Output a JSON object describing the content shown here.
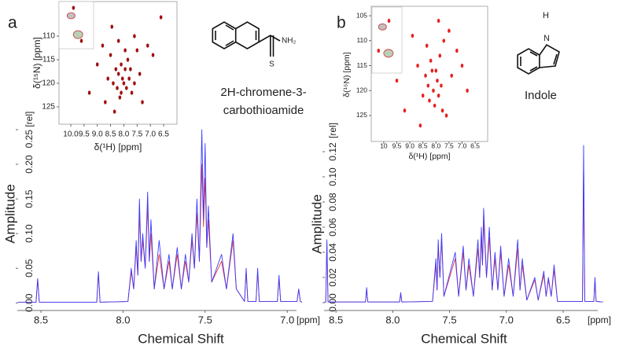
{
  "panel_labels": [
    "a",
    "b"
  ],
  "molecules": [
    {
      "atoms": [
        "NH₂",
        "S"
      ],
      "name_lines": [
        "2H-chromene-3-",
        "carbothioamide"
      ]
    },
    {
      "atoms": [
        "H",
        "N"
      ],
      "name_lines": [
        "Indole"
      ]
    }
  ],
  "chart_data": [
    {
      "type": "line",
      "x_label": "Chemical Shift",
      "y_label": "Amplitude",
      "x_unit": "[ppm]",
      "xlim": [
        8.644,
        6.905
      ],
      "ylim": [
        -0.011,
        0.267
      ],
      "xticks": [
        8.5,
        {
          "value": 8,
          "label": "8.0"
        },
        7.5,
        {
          "value": 7,
          "label": "7.0"
        }
      ],
      "yticks": [
        {
          "value": 0,
          "label": "0.00"
        },
        0.05,
        {
          "value": 0.1,
          "label": "0.10"
        },
        0.15,
        {
          "value": 0.2,
          "label": "0.20"
        },
        {
          "value": 0.25,
          "label": "0.25 [rel]"
        }
      ],
      "x": [
        8.64,
        8.53,
        8.52,
        8.51,
        8.16,
        8.15,
        8.14,
        7.97,
        7.95,
        7.935,
        7.92,
        7.91,
        7.9,
        7.89,
        7.88,
        7.865,
        7.85,
        7.84,
        7.83,
        7.81,
        7.78,
        7.75,
        7.72,
        7.7,
        7.67,
        7.645,
        7.62,
        7.6,
        7.58,
        7.565,
        7.55,
        7.535,
        7.52,
        7.51,
        7.5,
        7.49,
        7.48,
        7.46,
        7.4,
        7.37,
        7.33,
        7.31,
        7.26,
        7.25,
        7.24,
        7.19,
        7.18,
        7.17,
        7.06,
        7.05,
        7.04,
        6.94,
        6.93,
        6.92,
        6.91
      ],
      "series": [
        {
          "color": "#e8383b",
          "values": [
            0.001,
            0.001,
            0.034,
            0.001,
            0.001,
            0.043,
            0.001,
            0.002,
            0.045,
            0.02,
            0.08,
            0.04,
            0.13,
            0.06,
            0.09,
            0.05,
            0.14,
            0.06,
            0.1,
            0.02,
            0.07,
            0.02,
            0.06,
            0.02,
            0.07,
            0.02,
            0.06,
            0.03,
            0.09,
            0.05,
            0.13,
            0.06,
            0.2,
            0.11,
            0.18,
            0.08,
            0.12,
            0.03,
            0.06,
            0.02,
            0.09,
            0.02,
            0.002,
            0.045,
            0.002,
            0.002,
            0.045,
            0.002,
            0.002,
            0.035,
            0.002,
            0.002,
            0.02,
            0.002,
            0.001
          ]
        },
        {
          "color": "#3b3bff",
          "values": [
            0.001,
            0.001,
            0.035,
            0.001,
            0.001,
            0.045,
            0.001,
            0.002,
            0.05,
            0.02,
            0.09,
            0.04,
            0.15,
            0.06,
            0.1,
            0.05,
            0.16,
            0.06,
            0.12,
            0.02,
            0.09,
            0.02,
            0.07,
            0.02,
            0.08,
            0.02,
            0.07,
            0.03,
            0.1,
            0.05,
            0.15,
            0.06,
            0.25,
            0.12,
            0.23,
            0.08,
            0.14,
            0.03,
            0.07,
            0.02,
            0.1,
            0.02,
            0.002,
            0.05,
            0.002,
            0.002,
            0.05,
            0.002,
            0.002,
            0.04,
            0.002,
            0.002,
            0.02,
            0.002,
            0.001
          ]
        }
      ]
    },
    {
      "type": "scatter",
      "x_label": "δ(¹H) [ppm]",
      "y_label": "δ(¹⁵N) [ppm]",
      "xlim": [
        10.445,
        5.996
      ],
      "ylim": [
        128.67,
        102.67
      ],
      "xticks": [
        {
          "value": 10,
          "label": "10.0"
        },
        9.5,
        {
          "value": 9,
          "label": "9.0"
        },
        8.5,
        {
          "value": 8,
          "label": "8.0"
        },
        7.5,
        {
          "value": 7,
          "label": "7.0"
        },
        6.5
      ],
      "yticks": [
        110,
        115,
        120,
        125
      ],
      "x": [
        9.9,
        9.6,
        9.3,
        9.0,
        8.8,
        8.6,
        8.5,
        8.4,
        8.3,
        8.25,
        8.2,
        8.15,
        8.1,
        8.05,
        8.0,
        7.95,
        7.9,
        7.85,
        7.8,
        7.7,
        7.6,
        7.5,
        7.4,
        7.3,
        7.1,
        6.9,
        8.7,
        8.35,
        8.1,
        7.95,
        7.75,
        8.45,
        8.2,
        7.6,
        6.6
      ],
      "series": [
        {
          "color": "#a01010",
          "values": [
            104,
            111,
            122,
            116,
            112,
            119,
            114,
            120,
            117,
            121,
            118,
            123,
            116,
            119,
            120,
            117,
            121,
            115,
            119,
            122,
            110,
            113,
            118,
            124,
            112,
            114,
            124,
            126,
            122,
            113,
            117,
            108,
            111,
            120,
            106
          ]
        }
      ]
    },
    {
      "type": "line",
      "x_label": "Chemical Shift",
      "y_label": "Amplitude",
      "x_unit": "[ppm]",
      "y_unit": "[rel]",
      "xlim": [
        8.605,
        6.14
      ],
      "ylim": [
        -0.00625,
        0.13125
      ],
      "xticks": [
        8.5,
        {
          "value": 8,
          "label": "8.0"
        },
        7.5,
        {
          "value": 7,
          "label": "7.0"
        },
        6.5
      ],
      "yticks": [
        {
          "value": 0,
          "label": "0.00"
        },
        0.02,
        0.04,
        0.06,
        0.08,
        {
          "value": 0.1,
          "label": "0.10"
        },
        0.12
      ],
      "x": [
        8.6,
        8.59,
        8.58,
        8.57,
        8.24,
        8.23,
        8.22,
        7.94,
        7.93,
        7.92,
        7.65,
        7.62,
        7.61,
        7.6,
        7.585,
        7.57,
        7.55,
        7.45,
        7.42,
        7.38,
        7.355,
        7.33,
        7.29,
        7.25,
        7.235,
        7.22,
        7.21,
        7.2,
        7.175,
        7.15,
        7.125,
        7.1,
        7.075,
        7.05,
        7.02,
        6.98,
        6.94,
        6.9,
        6.88,
        6.86,
        6.82,
        6.75,
        6.72,
        6.67,
        6.65,
        6.63,
        6.605,
        6.58,
        6.55,
        6.33,
        6.32,
        6.31,
        6.23,
        6.22,
        6.21,
        6.15
      ],
      "series": [
        {
          "color": "#e8383b",
          "values": [
            0.0005,
            0.0005,
            0.048,
            0.0005,
            0.0005,
            0.011,
            0.0005,
            0.0005,
            0.007,
            0.0005,
            0.001,
            0.03,
            0.01,
            0.045,
            0.02,
            0.05,
            0.005,
            0.035,
            0.005,
            0.04,
            0.01,
            0.03,
            0.005,
            0.043,
            0.02,
            0.052,
            0.03,
            0.065,
            0.02,
            0.052,
            0.01,
            0.035,
            0.01,
            0.04,
            0.005,
            0.03,
            0.005,
            0.043,
            0.01,
            0.03,
            0.002,
            0.018,
            0.002,
            0.022,
            0.005,
            0.018,
            0.005,
            0.026,
            0.001,
            0.001,
            0.11,
            0.001,
            0.001,
            0.018,
            0.001,
            0.0005
          ]
        },
        {
          "color": "#3b3bff",
          "values": [
            0.0005,
            0.0005,
            0.05,
            0.0005,
            0.0005,
            0.012,
            0.0005,
            0.0005,
            0.008,
            0.0005,
            0.001,
            0.035,
            0.01,
            0.05,
            0.02,
            0.055,
            0.005,
            0.04,
            0.005,
            0.045,
            0.01,
            0.035,
            0.005,
            0.05,
            0.02,
            0.06,
            0.03,
            0.075,
            0.02,
            0.06,
            0.01,
            0.04,
            0.01,
            0.045,
            0.005,
            0.035,
            0.005,
            0.05,
            0.01,
            0.035,
            0.002,
            0.02,
            0.002,
            0.025,
            0.005,
            0.02,
            0.005,
            0.03,
            0.001,
            0.001,
            0.125,
            0.001,
            0.001,
            0.02,
            0.001,
            0.0005
          ]
        }
      ]
    },
    {
      "type": "scatter",
      "x_label": "δ(¹H) [ppm]",
      "y_label": "δ(¹⁵N) [ppm]",
      "xlim": [
        10.48,
        6.02
      ],
      "ylim": [
        130.2,
        103.1
      ],
      "xticks": [
        10,
        9.5,
        {
          "value": 9,
          "label": "9.0"
        },
        8.5,
        {
          "value": 8,
          "label": "8.0"
        },
        7.5,
        {
          "value": 7,
          "label": "7.0"
        },
        6.5
      ],
      "yticks": [
        105,
        110,
        115,
        120,
        125
      ],
      "x": [
        10.2,
        9.8,
        9.5,
        9.2,
        8.9,
        8.7,
        8.5,
        8.4,
        8.3,
        8.2,
        8.1,
        8.05,
        8.0,
        7.95,
        7.9,
        7.85,
        7.8,
        7.7,
        7.6,
        7.5,
        7.4,
        7.2,
        7.0,
        6.8,
        8.6,
        8.25,
        8.15,
        7.75,
        8.35,
        7.9
      ],
      "series": [
        {
          "color": "#e82020",
          "values": [
            112,
            106,
            118,
            124,
            109,
            115,
            121,
            117,
            119,
            114,
            120,
            123,
            116,
            118,
            121,
            113,
            119,
            110,
            125,
            108,
            117,
            112,
            115,
            120,
            127,
            122,
            116,
            124,
            111,
            106
          ]
        }
      ]
    }
  ]
}
